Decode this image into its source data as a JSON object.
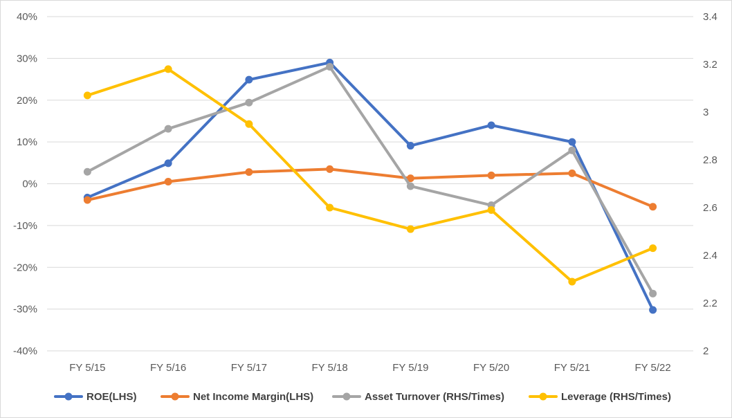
{
  "chart_data": {
    "type": "line",
    "categories": [
      "FY 5/15",
      "FY 5/16",
      "FY 5/17",
      "FY 5/18",
      "FY 5/19",
      "FY 5/20",
      "FY 5/21",
      "FY 5/22"
    ],
    "left_axis": {
      "min": -40,
      "max": 40,
      "step": 10,
      "tick_labels": [
        "40%",
        "30%",
        "20%",
        "10%",
        "0%",
        "-10%",
        "-20%",
        "-30%",
        "-40%"
      ]
    },
    "right_axis": {
      "min": 2.0,
      "max": 3.4,
      "step": 0.2,
      "tick_labels": [
        "3.4",
        "3.2",
        "3",
        "2.8",
        "2.6",
        "2.4",
        "2.2",
        "2"
      ]
    },
    "grid": "horizontal",
    "legend_position": "bottom",
    "series": [
      {
        "name": "ROE(LHS)",
        "axis": "left",
        "color": "#4472C4",
        "values": [
          -3.3,
          4.9,
          24.9,
          29.0,
          9.1,
          14.0,
          10.0,
          -30.2
        ]
      },
      {
        "name": "Net Income Margin(LHS)",
        "axis": "left",
        "color": "#ED7D31",
        "values": [
          -3.9,
          0.5,
          2.8,
          3.5,
          1.3,
          2.0,
          2.5,
          -5.5
        ]
      },
      {
        "name": "Asset Turnover (RHS/Times)",
        "axis": "right",
        "color": "#A5A5A5",
        "values": [
          2.75,
          2.93,
          3.04,
          3.19,
          2.69,
          2.61,
          2.84,
          2.24
        ]
      },
      {
        "name": "Leverage (RHS/Times)",
        "axis": "right",
        "color": "#FFC000",
        "values": [
          3.07,
          3.18,
          2.95,
          2.6,
          2.51,
          2.59,
          2.29,
          2.43
        ]
      }
    ]
  }
}
